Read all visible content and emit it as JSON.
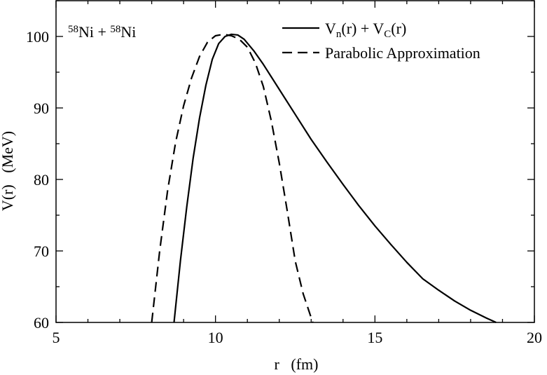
{
  "chart_data": {
    "type": "line",
    "title": "",
    "annotation": {
      "parts": [
        {
          "text": "58",
          "sup": true
        },
        {
          "text": "Ni + ",
          "sup": false
        },
        {
          "text": "58",
          "sup": true
        },
        {
          "text": "Ni",
          "sup": false
        }
      ]
    },
    "xlabel": "r   (fm)",
    "ylabel": "V(r)   (MeV)",
    "xlim": [
      5,
      20
    ],
    "ylim": [
      60,
      105
    ],
    "xticks": [
      5,
      10,
      15,
      20
    ],
    "yticks": [
      60,
      70,
      80,
      90,
      100
    ],
    "grid": false,
    "legend_position": "top-right",
    "series": [
      {
        "id": "vn_vc",
        "legend": {
          "parts": [
            {
              "text": "V",
              "sub": false
            },
            {
              "text": "n",
              "sub": true
            },
            {
              "text": "(r) + V",
              "sub": false
            },
            {
              "text": "C",
              "sub": true
            },
            {
              "text": "(r)",
              "sub": false
            }
          ]
        },
        "style": "solid",
        "color": "#000000",
        "x": [
          8.7,
          8.9,
          9.1,
          9.3,
          9.5,
          9.7,
          9.9,
          10.1,
          10.3,
          10.5,
          10.7,
          10.9,
          11.2,
          11.5,
          12.0,
          12.5,
          13.0,
          13.5,
          14.0,
          14.5,
          15.0,
          15.5,
          16.0,
          16.5,
          17.0,
          17.5,
          18.0,
          18.5,
          18.8
        ],
        "y": [
          60.0,
          68.6,
          76.2,
          83.0,
          88.6,
          93.2,
          96.8,
          99.0,
          100.0,
          100.3,
          100.2,
          99.6,
          98.0,
          96.1,
          92.6,
          89.1,
          85.6,
          82.4,
          79.3,
          76.3,
          73.5,
          70.9,
          68.4,
          66.1,
          64.5,
          63.0,
          61.7,
          60.6,
          60.0
        ]
      },
      {
        "id": "parabolic",
        "legend": {
          "parts": [
            {
              "text": "Parabolic Approximation",
              "sub": false
            }
          ]
        },
        "style": "dashed",
        "color": "#000000",
        "x": [
          8.0,
          8.25,
          8.5,
          8.75,
          9.0,
          9.25,
          9.5,
          9.75,
          10.0,
          10.25,
          10.5,
          10.75,
          11.0,
          11.25,
          11.5,
          11.75,
          12.0,
          12.25,
          12.5,
          12.75,
          13.05
        ],
        "y": [
          60.0,
          70.0,
          78.5,
          85.2,
          90.3,
          94.2,
          97.2,
          99.2,
          100.1,
          100.3,
          100.1,
          99.6,
          98.5,
          96.3,
          93.0,
          88.2,
          82.3,
          75.6,
          68.6,
          64.0,
          60.0
        ]
      }
    ]
  }
}
